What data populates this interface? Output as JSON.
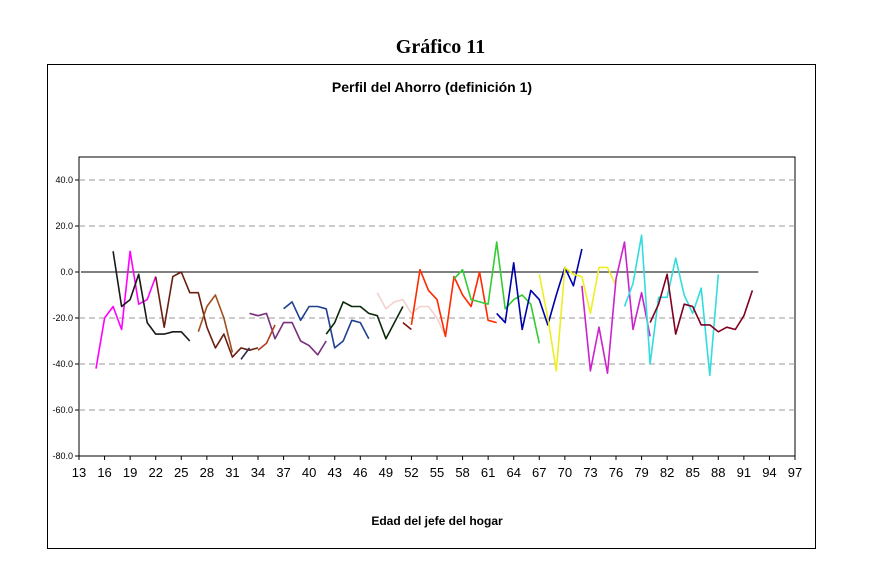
{
  "page": {
    "title": "Gráfico 11"
  },
  "chart_data": {
    "type": "line",
    "title": "Perfil del Ahorro (definición 1)",
    "xlabel": "Edad del jefe del hogar",
    "ylabel": "",
    "xlim": [
      13,
      97
    ],
    "ylim": [
      -80,
      50
    ],
    "yticks": [
      40,
      20,
      0,
      -20,
      -40,
      -60,
      -80
    ],
    "ytick_labels": [
      "40.0",
      "20.0",
      "0.0",
      "-20.0",
      "-40.0",
      "-60.0",
      "-80.0"
    ],
    "xticks": [
      13,
      16,
      19,
      22,
      25,
      28,
      31,
      34,
      37,
      40,
      43,
      46,
      49,
      52,
      55,
      58,
      61,
      64,
      67,
      70,
      73,
      76,
      79,
      82,
      85,
      88,
      91,
      94,
      97
    ],
    "xtick_labels": [
      "13",
      "16",
      "19",
      "22",
      "25",
      "28",
      "31",
      "34",
      "37",
      "40",
      "43",
      "46",
      "49",
      "52",
      "55",
      "58",
      "61",
      "64",
      "67",
      "70",
      "73",
      "76",
      "79",
      "82",
      "85",
      "88",
      "91",
      "94",
      "97"
    ],
    "grid": true,
    "legend": "none",
    "zero_line": true,
    "series": [
      {
        "color": "#ff00ff",
        "points": [
          [
            15,
            -42
          ],
          [
            16,
            -20
          ],
          [
            17,
            -15
          ],
          [
            18,
            -25
          ],
          [
            19,
            9
          ],
          [
            20,
            -14
          ],
          [
            21,
            -12
          ],
          [
            22,
            -2
          ]
        ]
      },
      {
        "color": "#1a1a1a",
        "points": [
          [
            17,
            9
          ],
          [
            18,
            -15
          ],
          [
            19,
            -12
          ],
          [
            20,
            -1
          ],
          [
            21,
            -22
          ],
          [
            22,
            -27
          ],
          [
            23,
            -27
          ],
          [
            24,
            -26
          ],
          [
            25,
            -26
          ],
          [
            26,
            -30
          ]
        ]
      },
      {
        "color": "#6b1f10",
        "points": [
          [
            22,
            -2
          ],
          [
            23,
            -24
          ],
          [
            24,
            -2
          ],
          [
            25,
            0
          ],
          [
            26,
            -9
          ],
          [
            27,
            -9
          ],
          [
            28,
            -24
          ],
          [
            29,
            -33
          ],
          [
            30,
            -27
          ],
          [
            31,
            -37
          ],
          [
            32,
            -33
          ],
          [
            33,
            -34
          ],
          [
            34,
            -33
          ]
        ]
      },
      {
        "color": "#a05020",
        "points": [
          [
            27,
            -26
          ],
          [
            28,
            -15
          ],
          [
            29,
            -10
          ],
          [
            30,
            -20
          ],
          [
            31,
            -35
          ]
        ]
      },
      {
        "color": "#2c2c50",
        "points": [
          [
            32,
            -38
          ],
          [
            33,
            -33
          ]
        ]
      },
      {
        "color": "#7a2f7a",
        "points": [
          [
            33,
            -18
          ],
          [
            34,
            -19
          ],
          [
            35,
            -18
          ],
          [
            36,
            -29
          ],
          [
            37,
            -22
          ],
          [
            38,
            -22
          ],
          [
            39,
            -30
          ],
          [
            40,
            -32
          ],
          [
            41,
            -36
          ],
          [
            42,
            -30
          ]
        ]
      },
      {
        "color": "#b04020",
        "points": [
          [
            34,
            -34
          ],
          [
            35,
            -31
          ],
          [
            36,
            -23
          ]
        ]
      },
      {
        "color": "#1f3f8f",
        "points": [
          [
            37,
            -16
          ],
          [
            38,
            -13
          ],
          [
            39,
            -21
          ],
          [
            40,
            -15
          ],
          [
            41,
            -15
          ],
          [
            42,
            -16
          ],
          [
            43,
            -33
          ],
          [
            44,
            -30
          ],
          [
            45,
            -21
          ],
          [
            46,
            -22
          ],
          [
            47,
            -29
          ]
        ]
      },
      {
        "color": "#0a2a0a",
        "points": [
          [
            42,
            -27
          ],
          [
            43,
            -22
          ],
          [
            44,
            -13
          ],
          [
            45,
            -15
          ],
          [
            46,
            -15
          ],
          [
            47,
            -18
          ],
          [
            48,
            -19
          ],
          [
            49,
            -29
          ],
          [
            50,
            -22
          ],
          [
            51,
            -15
          ]
        ]
      },
      {
        "color": "#f5d0d0",
        "points": [
          [
            48,
            -9
          ],
          [
            49,
            -16
          ],
          [
            50,
            -13
          ],
          [
            51,
            -12
          ],
          [
            52,
            -18
          ],
          [
            53,
            -15
          ],
          [
            54,
            -15
          ],
          [
            55,
            -20
          ],
          [
            56,
            -28
          ]
        ]
      },
      {
        "color": "#8a1010",
        "points": [
          [
            51,
            -22
          ],
          [
            52,
            -25
          ]
        ]
      },
      {
        "color": "#ff2a00",
        "points": [
          [
            52,
            -23
          ],
          [
            53,
            1
          ],
          [
            54,
            -8
          ],
          [
            55,
            -12
          ],
          [
            56,
            -28
          ],
          [
            57,
            -2
          ],
          [
            58,
            -10
          ],
          [
            59,
            -15
          ],
          [
            60,
            0
          ],
          [
            61,
            -21
          ],
          [
            62,
            -22
          ]
        ]
      },
      {
        "color": "#33cc33",
        "points": [
          [
            57,
            -3
          ],
          [
            58,
            1
          ],
          [
            59,
            -12
          ],
          [
            60,
            -13
          ],
          [
            61,
            -14
          ],
          [
            62,
            13
          ],
          [
            63,
            -16
          ],
          [
            64,
            -12
          ],
          [
            65,
            -10
          ],
          [
            66,
            -14
          ],
          [
            67,
            -31
          ]
        ]
      },
      {
        "color": "#0000aa",
        "points": [
          [
            62,
            -18
          ],
          [
            63,
            -22
          ],
          [
            64,
            4
          ],
          [
            65,
            -25
          ],
          [
            66,
            -8
          ],
          [
            67,
            -12
          ],
          [
            68,
            -23
          ],
          [
            69,
            -10
          ],
          [
            70,
            2
          ],
          [
            71,
            -6
          ],
          [
            72,
            10
          ]
        ]
      },
      {
        "color": "#eeee22",
        "points": [
          [
            67,
            -1
          ],
          [
            68,
            -20
          ],
          [
            69,
            -43
          ],
          [
            70,
            2
          ],
          [
            71,
            -1
          ],
          [
            72,
            -2
          ],
          [
            73,
            -18
          ],
          [
            74,
            2
          ],
          [
            75,
            2
          ],
          [
            76,
            -6
          ]
        ]
      },
      {
        "color": "#cc22cc",
        "points": [
          [
            72,
            -6
          ],
          [
            73,
            -43
          ],
          [
            74,
            -24
          ],
          [
            75,
            -44
          ],
          [
            76,
            -3
          ],
          [
            77,
            13
          ],
          [
            78,
            -25
          ],
          [
            79,
            -9
          ],
          [
            80,
            -28
          ]
        ]
      },
      {
        "color": "#33dddd",
        "points": [
          [
            77,
            -15
          ],
          [
            78,
            -5
          ],
          [
            79,
            16
          ],
          [
            80,
            -40
          ],
          [
            81,
            -11
          ],
          [
            82,
            -11
          ],
          [
            83,
            6
          ],
          [
            84,
            -10
          ],
          [
            85,
            -18
          ],
          [
            86,
            -7
          ],
          [
            87,
            -45
          ],
          [
            88,
            -1
          ]
        ]
      },
      {
        "color": "#800020",
        "points": [
          [
            80,
            -22
          ],
          [
            81,
            -14
          ],
          [
            82,
            -1
          ],
          [
            83,
            -27
          ],
          [
            84,
            -14
          ],
          [
            85,
            -15
          ],
          [
            86,
            -23
          ],
          [
            87,
            -23
          ],
          [
            88,
            -26
          ],
          [
            89,
            -24
          ],
          [
            90,
            -25
          ],
          [
            91,
            -19
          ],
          [
            92,
            -8
          ]
        ]
      }
    ]
  }
}
